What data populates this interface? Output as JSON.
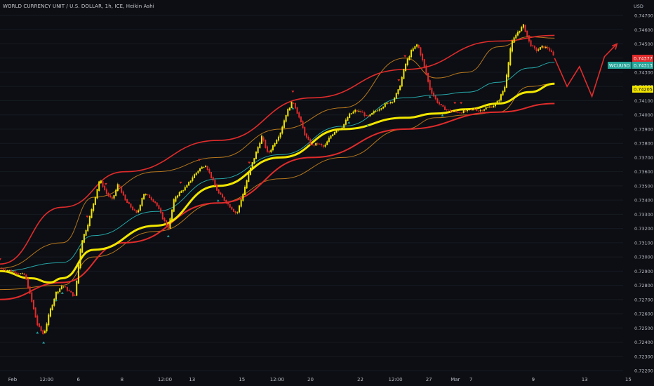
{
  "header": {
    "title": "WORLD CURRENCY UNIT / U.S. DOLLAR, 1h, ICE, Heikin Ashi"
  },
  "price_axis": {
    "unit": "USD",
    "ticks": [
      "0.74700",
      "0.74600",
      "0.74500",
      "0.74400",
      "0.74300",
      "0.74200",
      "0.74100",
      "0.74000",
      "0.73900",
      "0.73800",
      "0.73700",
      "0.73600",
      "0.73500",
      "0.73400",
      "0.73300",
      "0.73200",
      "0.73100",
      "0.73000",
      "0.72900",
      "0.72800",
      "0.72700",
      "0.72600",
      "0.72500",
      "0.72400",
      "0.72300",
      "0.72200"
    ]
  },
  "time_axis": {
    "ticks": [
      "Feb",
      "12:00",
      "6",
      "8",
      "12:00",
      "13",
      "15",
      "12:00",
      "20",
      "22",
      "12:00",
      "27",
      "Mar",
      "7",
      "9",
      "13",
      "15"
    ]
  },
  "badges": {
    "symbol": {
      "text": "WCUUSD",
      "color": "#26a69a"
    },
    "last_price": {
      "text": "0.74377",
      "color": "#e02b2b"
    },
    "current": {
      "text": "0.74313",
      "color": "#26a69a"
    },
    "ma": {
      "text": "0.74205",
      "color": "#f2e600"
    }
  },
  "colors": {
    "background": "#0c0e13",
    "bull_candle": "#f2e600",
    "bear_candle": "#e02b2b",
    "channel": "#e02b2b",
    "bollinger": "#c9821e",
    "basis": "#26a6a8",
    "moving_average": "#f2e600",
    "projection": "#e02b2b"
  },
  "chart_data": {
    "type": "line",
    "style": "heikin-ashi candlestick with indicator overlays",
    "y_range": [
      0.722,
      0.7472
    ],
    "x_range": [
      0,
      100
    ],
    "series": [
      {
        "key": "price",
        "style": "heikin-ashi",
        "x": [
          0,
          2,
          4,
          5,
          6,
          7,
          8,
          9,
          10,
          11,
          12,
          13,
          14,
          15,
          16,
          17,
          18,
          19,
          20,
          21,
          22,
          23,
          24,
          25,
          26,
          27,
          28,
          30,
          31,
          32,
          33,
          34,
          35,
          36,
          37,
          38,
          39,
          40,
          42,
          43,
          44,
          45,
          46,
          47,
          48,
          49,
          50,
          51,
          52,
          53,
          54,
          55,
          56,
          57,
          58,
          59,
          60,
          61,
          62,
          63,
          64,
          65,
          66,
          67,
          68,
          69,
          70,
          71,
          72,
          73,
          74,
          75,
          76,
          77,
          78,
          79,
          80,
          81,
          82,
          83,
          84,
          85,
          86,
          87,
          88,
          89
        ],
        "y": [
          0.7292,
          0.729,
          0.7287,
          0.727,
          0.7252,
          0.7245,
          0.7262,
          0.7275,
          0.728,
          0.7276,
          0.7272,
          0.731,
          0.7322,
          0.7338,
          0.7355,
          0.7345,
          0.734,
          0.7352,
          0.734,
          0.7335,
          0.733,
          0.7345,
          0.7342,
          0.7338,
          0.7328,
          0.732,
          0.7342,
          0.735,
          0.7357,
          0.7362,
          0.7365,
          0.7355,
          0.7345,
          0.734,
          0.7335,
          0.733,
          0.7345,
          0.736,
          0.7385,
          0.7372,
          0.738,
          0.7388,
          0.7402,
          0.741,
          0.7398,
          0.7385,
          0.7378,
          0.738,
          0.7377,
          0.7385,
          0.739,
          0.7392,
          0.74,
          0.7403,
          0.7402,
          0.7398,
          0.7402,
          0.7405,
          0.7408,
          0.741,
          0.7418,
          0.7435,
          0.7445,
          0.745,
          0.7435,
          0.7418,
          0.741,
          0.7405,
          0.7403,
          0.7402,
          0.7402,
          0.7403,
          0.7404,
          0.7403,
          0.7405,
          0.7406,
          0.741,
          0.742,
          0.745,
          0.7458,
          0.7463,
          0.745,
          0.7445,
          0.7448,
          0.7447,
          0.744
        ]
      },
      {
        "key": "channel_upper",
        "x": [
          0,
          10,
          20,
          35,
          50,
          65,
          80,
          89
        ],
        "y": [
          0.7295,
          0.7335,
          0.736,
          0.7382,
          0.7412,
          0.7432,
          0.7452,
          0.7456
        ]
      },
      {
        "key": "channel_lower",
        "x": [
          0,
          10,
          20,
          35,
          50,
          65,
          80,
          89
        ],
        "y": [
          0.727,
          0.7282,
          0.731,
          0.7338,
          0.737,
          0.739,
          0.7402,
          0.7408
        ]
      },
      {
        "key": "moving_average",
        "x": [
          0,
          5,
          8,
          10,
          15,
          25,
          35,
          45,
          55,
          65,
          70,
          75,
          80,
          85,
          89
        ],
        "y": [
          0.729,
          0.7285,
          0.7282,
          0.7285,
          0.7305,
          0.7322,
          0.735,
          0.737,
          0.739,
          0.7398,
          0.7401,
          0.7404,
          0.7408,
          0.7416,
          0.7422
        ]
      },
      {
        "key": "basis",
        "x": [
          0,
          10,
          15,
          25,
          35,
          45,
          55,
          65,
          70,
          75,
          80,
          85,
          89
        ],
        "y": [
          0.729,
          0.7296,
          0.7315,
          0.7332,
          0.7355,
          0.7372,
          0.7392,
          0.7412,
          0.7414,
          0.7416,
          0.7423,
          0.7433,
          0.7437
        ]
      },
      {
        "key": "bollinger_upper",
        "x": [
          0,
          10,
          15,
          25,
          35,
          45,
          55,
          65,
          70,
          75,
          80,
          85,
          89
        ],
        "y": [
          0.7292,
          0.731,
          0.7342,
          0.736,
          0.737,
          0.739,
          0.7405,
          0.744,
          0.7426,
          0.743,
          0.7448,
          0.7455,
          0.7454
        ]
      },
      {
        "key": "bollinger_lower",
        "x": [
          0,
          10,
          15,
          25,
          35,
          45,
          55,
          65,
          70,
          75,
          80,
          85,
          89
        ],
        "y": [
          0.7277,
          0.728,
          0.73,
          0.7318,
          0.7338,
          0.7355,
          0.737,
          0.739,
          0.7398,
          0.74,
          0.7402,
          0.742,
          0.7422
        ]
      },
      {
        "key": "projection",
        "x": [
          89,
          91,
          93,
          95,
          97,
          99
        ],
        "y": [
          0.744,
          0.742,
          0.7434,
          0.7413,
          0.7441,
          0.745
        ]
      }
    ]
  }
}
